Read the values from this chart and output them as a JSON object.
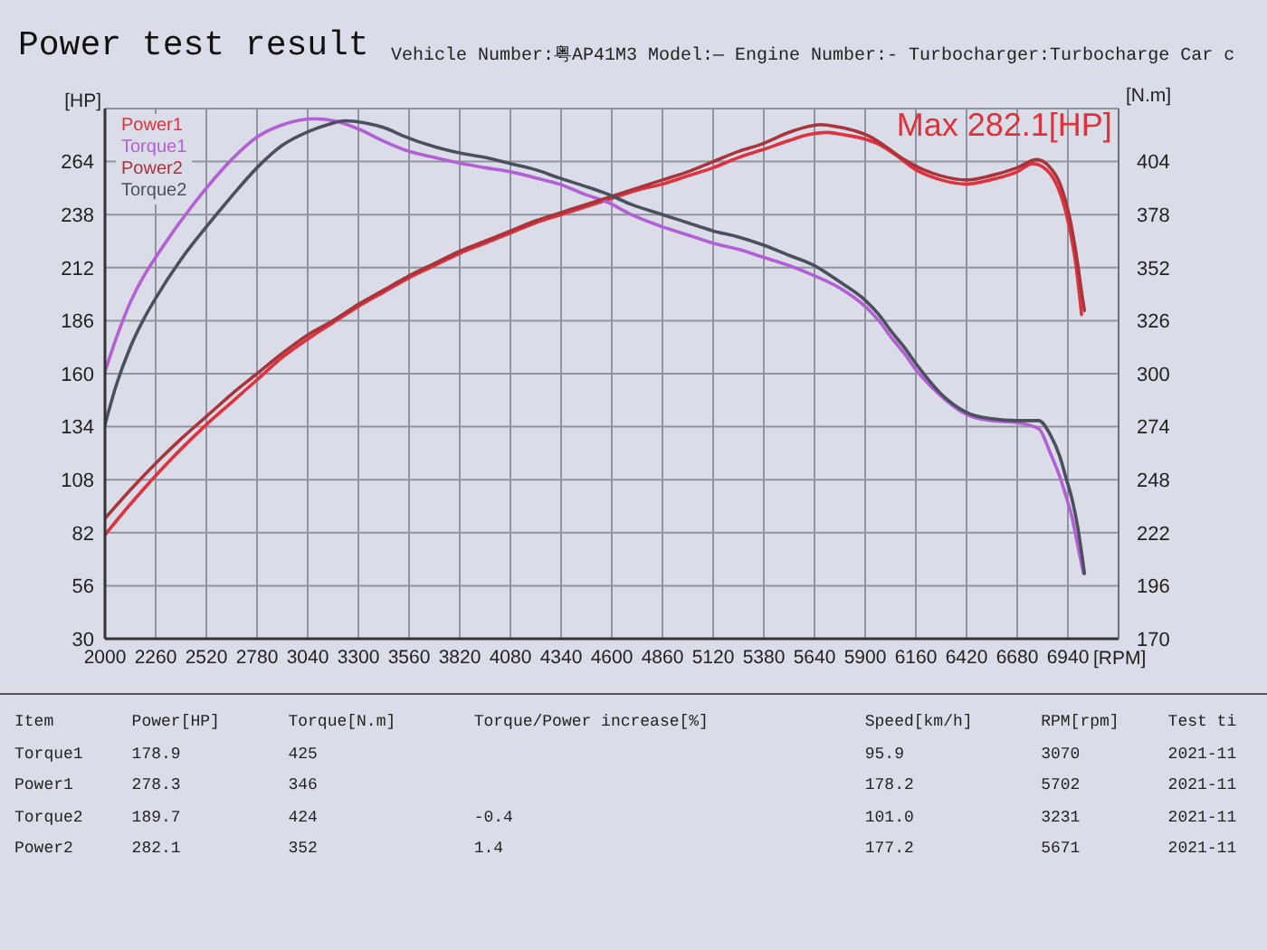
{
  "chart_data": {
    "type": "line",
    "title": "Power test result",
    "subtitle": "Vehicle Number:粤AP41M3 Model:— Engine Number:- Turbocharger:Turbocharge Car c",
    "xlabel": "[RPM]",
    "ylabel": "[HP]",
    "y2label": "[N.m]",
    "xlim": [
      2000,
      7200
    ],
    "xticks": [
      2000,
      2260,
      2520,
      2780,
      3040,
      3300,
      3560,
      3820,
      4080,
      4340,
      4600,
      4860,
      5120,
      5380,
      5640,
      5900,
      6160,
      6420,
      6680,
      6940
    ],
    "ylim": [
      30,
      290
    ],
    "yticks": [
      30,
      56,
      82,
      108,
      134,
      160,
      186,
      212,
      238,
      264
    ],
    "y2lim": [
      170,
      430
    ],
    "y2ticks": [
      170,
      196,
      222,
      248,
      274,
      300,
      326,
      352,
      378,
      404
    ],
    "grid": true,
    "legend": "top left",
    "line_style": "solid",
    "series": [
      {
        "name": "Power1",
        "color": "#e0313f",
        "x": [
          2000,
          2130,
          2260,
          2390,
          2520,
          2650,
          2780,
          2910,
          3070,
          3170,
          3300,
          3430,
          3560,
          3690,
          3820,
          3950,
          4080,
          4210,
          4340,
          4470,
          4600,
          4730,
          4860,
          4990,
          5120,
          5250,
          5380,
          5500,
          5600,
          5702,
          5800,
          5900,
          5980,
          6060,
          6160,
          6290,
          6420,
          6540,
          6680,
          6760,
          6830,
          6890,
          6940,
          6980,
          7000,
          7010
        ],
        "values": [
          81,
          96,
          110,
          123,
          135,
          146,
          157,
          168,
          178.9,
          185,
          193,
          200,
          207,
          213,
          219,
          224,
          229,
          234,
          238,
          242,
          246,
          250,
          253,
          257,
          261,
          266,
          270,
          274,
          277,
          278.3,
          277,
          275,
          272,
          267,
          260,
          255,
          253,
          255,
          259,
          263,
          260,
          251,
          235,
          214,
          198,
          189
        ]
      },
      {
        "name": "Torque1",
        "color": "#b35fd6",
        "axis": "y2",
        "x": [
          2000,
          2060,
          2130,
          2200,
          2260,
          2390,
          2520,
          2650,
          2780,
          2910,
          3070,
          3175,
          3300,
          3430,
          3560,
          3690,
          3830,
          3950,
          4080,
          4210,
          4330,
          4460,
          4580,
          4700,
          4860,
          4990,
          5120,
          5250,
          5380,
          5510,
          5640,
          5770,
          5900,
          5970,
          6040,
          6100,
          6160,
          6290,
          6420,
          6540,
          6680,
          6790,
          6850,
          6900,
          6930,
          6960,
          6990,
          7020
        ],
        "values": [
          301,
          318,
          335,
          348,
          357,
          375,
          391,
          405,
          416,
          422,
          425,
          424,
          420,
          414,
          409,
          406,
          403,
          401,
          399,
          396,
          393,
          388,
          384,
          378,
          372,
          368,
          364,
          361,
          357,
          353,
          348,
          342,
          333,
          326,
          317,
          310,
          302,
          289,
          280,
          277,
          276,
          273,
          261,
          249,
          240,
          230,
          216,
          202
        ]
      },
      {
        "name": "Power2",
        "color": "#a8343c",
        "x": [
          2000,
          2130,
          2260,
          2390,
          2520,
          2650,
          2780,
          2910,
          3040,
          3170,
          3231,
          3300,
          3430,
          3560,
          3690,
          3820,
          3950,
          4080,
          4210,
          4340,
          4470,
          4600,
          4730,
          4860,
          4990,
          5120,
          5250,
          5380,
          5500,
          5600,
          5671,
          5760,
          5850,
          5930,
          6010,
          6100,
          6200,
          6290,
          6420,
          6540,
          6680,
          6780,
          6840,
          6900,
          6950,
          6990,
          7010,
          7025
        ],
        "values": [
          89,
          103,
          116,
          128,
          139,
          150,
          160,
          170,
          179,
          186,
          189.7,
          194,
          201,
          208,
          214,
          220,
          225,
          230,
          235,
          239,
          243,
          247,
          251,
          255,
          259,
          264,
          269,
          273,
          278,
          281,
          282.1,
          281,
          279,
          276,
          271,
          265,
          260,
          257,
          255,
          257,
          261,
          265,
          262,
          253,
          236,
          214,
          200,
          191
        ]
      },
      {
        "name": "Torque2",
        "color": "#4b505e",
        "axis": "y2",
        "x": [
          2000,
          2060,
          2130,
          2200,
          2260,
          2390,
          2520,
          2650,
          2780,
          2910,
          3050,
          3140,
          3231,
          3330,
          3450,
          3520,
          3700,
          3830,
          3950,
          4080,
          4210,
          4330,
          4460,
          4580,
          4700,
          4860,
          4990,
          5120,
          5250,
          5380,
          5510,
          5640,
          5770,
          5900,
          5970,
          6040,
          6100,
          6160,
          6290,
          6420,
          6540,
          6680,
          6790,
          6850,
          6900,
          6930,
          6960,
          6990,
          7025
        ],
        "values": [
          275,
          295,
          313,
          327,
          337,
          356,
          372,
          387,
          401,
          412,
          419,
          422,
          424,
          423,
          420,
          417,
          411,
          408,
          406,
          403,
          400,
          396,
          392,
          388,
          383,
          378,
          374,
          370,
          367,
          363,
          358,
          353,
          345,
          336,
          329,
          320,
          313,
          305,
          290,
          281,
          278,
          277,
          277,
          270,
          259,
          249,
          239,
          225,
          202
        ]
      }
    ],
    "annotations": [
      {
        "text": "Max 282.1[HP]",
        "x": 5671,
        "y": 282.1
      },
      "Item        Power[HP]       Torque[N.m]        Torque/Power increase[%]                Speed[km/h]       RPM[rpm]     Test ti",
      "Torque1     178.9           425                                                        95.9              3070         2021-11",
      "Power1      278.3           346                                                        178.2             5702         2021-11",
      "Torque2     189.7           424                -0.4                                    101.0             3231         2021-11",
      "Power2      282.1           352                1.4                                     177.2             5671         2021-11"
    ]
  }
}
